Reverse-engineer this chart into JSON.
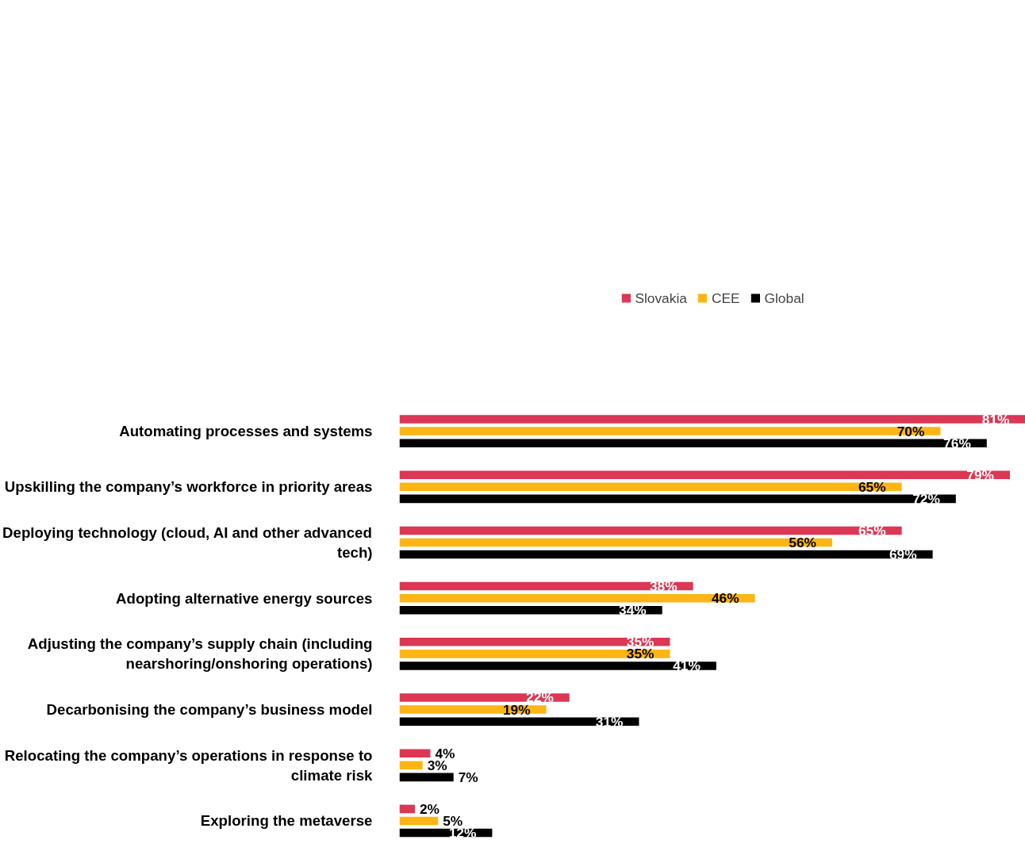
{
  "chart_data": {
    "type": "bar",
    "orientation": "horizontal",
    "legend": "top",
    "grid": false,
    "categories": [
      "Automating processes and systems",
      "Upskilling the company’s workforce in priority areas",
      "Deploying technology (cloud, AI and other advanced tech)",
      "Adopting alternative energy sources",
      "Adjusting the company’s supply chain (including nearshoring/onshoring operations)",
      "Decarbonising the company’s business model",
      "Relocating the company’s operations in response to climate risk",
      "Exploring the metaverse"
    ],
    "xlim": [
      0,
      81
    ],
    "series": [
      {
        "name": "Slovakia",
        "color": "#dc3754",
        "values": [
          81,
          79,
          65,
          38,
          35,
          22,
          4,
          2
        ],
        "value_labels": [
          "81%",
          "79%",
          "65%",
          "38%",
          "35%",
          "22%",
          "4%",
          "2%"
        ]
      },
      {
        "name": "CEE",
        "color": "#fdb515",
        "values": [
          70,
          65,
          56,
          46,
          35,
          19,
          3,
          5
        ],
        "value_labels": [
          "70%",
          "65%",
          "56%",
          "46%",
          "35%",
          "19%",
          "3%",
          "5%"
        ]
      },
      {
        "name": "Global",
        "color": "#000000",
        "values": [
          76,
          72,
          69,
          34,
          41,
          31,
          7,
          12
        ],
        "value_labels": [
          "76%",
          "72%",
          "69%",
          "34%",
          "41%",
          "31%",
          "7%",
          "12%"
        ]
      }
    ]
  }
}
